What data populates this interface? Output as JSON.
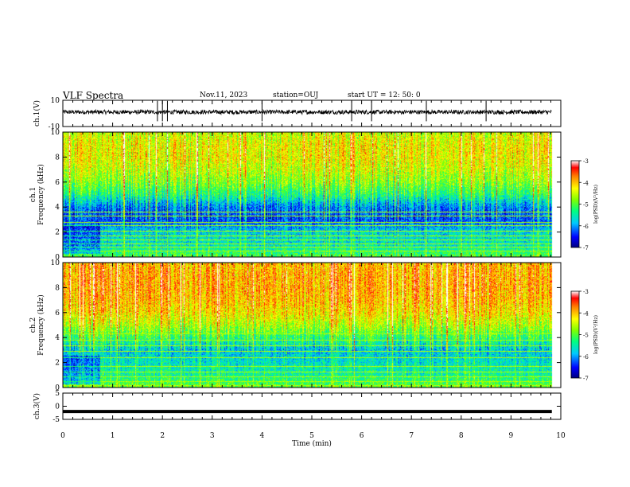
{
  "header": {
    "title": "VLF Spectra",
    "date": "Nov.11, 2023",
    "station": "station=OUJ",
    "start": "start  UT =   12: 50: 0"
  },
  "chart_data": [
    {
      "type": "line",
      "panel": "waveform-ch1",
      "ylabel": "ch.1(V)",
      "ylim": [
        -10,
        10
      ],
      "yticks": [
        10,
        -10
      ],
      "xlim": [
        0,
        10
      ],
      "description": "noisy waveform centred near +1 V with sparse spikes",
      "spike_times_min": [
        1.9,
        2.0,
        2.1,
        4.0,
        5.8,
        6.2,
        7.3,
        8.5
      ]
    },
    {
      "type": "heatmap",
      "panel": "spectrogram-ch1",
      "ylabel": "ch.1\nFrequency (kHz)",
      "ylim": [
        0,
        10
      ],
      "yticks": [
        0,
        2,
        4,
        6,
        8,
        10
      ],
      "xlim": [
        0,
        10
      ],
      "data_extent_min": 9.82,
      "colorbar": {
        "label": "log(PSD)(V²/Hz)",
        "range": [
          -7,
          -3
        ],
        "ticks": [
          -3,
          -4,
          -5,
          -6,
          -7
        ]
      },
      "profile": [
        {
          "f": 0,
          "v": -5.0
        },
        {
          "f": 1,
          "v": -5.6
        },
        {
          "f": 2,
          "v": -5.7
        },
        {
          "f": 3,
          "v": -6.3
        },
        {
          "f": 4,
          "v": -6.1
        },
        {
          "f": 5,
          "v": -5.3
        },
        {
          "f": 6,
          "v": -4.8
        },
        {
          "f": 7,
          "v": -4.5
        },
        {
          "f": 8,
          "v": -4.3
        },
        {
          "f": 9,
          "v": -4.3
        },
        {
          "f": 10,
          "v": -4.5
        }
      ],
      "lines_khz": [
        0.5,
        0.8,
        1.1,
        1.4,
        1.75,
        2.1,
        2.55,
        2.8,
        3.3,
        3.6
      ]
    },
    {
      "type": "heatmap",
      "panel": "spectrogram-ch2",
      "ylabel": "ch.2\nFrequency (kHz)",
      "ylim": [
        0,
        10
      ],
      "yticks": [
        0,
        2,
        4,
        6,
        8,
        10
      ],
      "xlim": [
        0,
        10
      ],
      "data_extent_min": 9.82,
      "colorbar": {
        "label": "log(PSD)(V²/Hz)",
        "range": [
          -7,
          -3
        ],
        "ticks": [
          -3,
          -4,
          -5,
          -6,
          -7
        ]
      },
      "profile": [
        {
          "f": 0,
          "v": -4.9
        },
        {
          "f": 1,
          "v": -5.4
        },
        {
          "f": 2,
          "v": -5.6
        },
        {
          "f": 3,
          "v": -5.8
        },
        {
          "f": 4,
          "v": -5.2
        },
        {
          "f": 5,
          "v": -4.6
        },
        {
          "f": 6,
          "v": -4.2
        },
        {
          "f": 7,
          "v": -4.0
        },
        {
          "f": 8,
          "v": -3.9
        },
        {
          "f": 9,
          "v": -3.9
        },
        {
          "f": 10,
          "v": -4.0
        }
      ],
      "lines_khz": [
        0.2,
        0.5,
        0.9,
        1.3,
        1.7,
        2.4,
        2.9,
        3.4,
        3.8,
        4.3
      ]
    },
    {
      "type": "line",
      "panel": "waveform-ch3",
      "ylabel": "ch.3(V)",
      "ylim": [
        -5,
        5
      ],
      "yticks": [
        5,
        0,
        -5
      ],
      "xlim": [
        0,
        10
      ],
      "xlabel": "Time  (min)",
      "xticks": [
        0,
        1,
        2,
        3,
        4,
        5,
        6,
        7,
        8,
        9,
        10
      ],
      "constant_value_v": -2.0
    }
  ]
}
